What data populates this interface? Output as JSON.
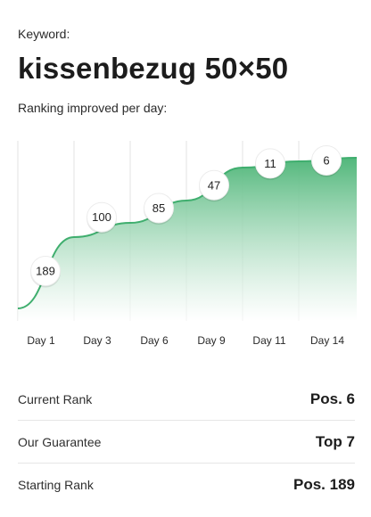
{
  "keyword": {
    "label": "Keyword:",
    "title": "kissenbezug 50×50"
  },
  "ranking": {
    "subtitle": "Ranking improved per day:"
  },
  "chart_data": {
    "type": "area",
    "categories": [
      "Day 1",
      "Day 3",
      "Day 6",
      "Day 9",
      "Day 11",
      "Day 14"
    ],
    "values": [
      189,
      100,
      85,
      47,
      11,
      6
    ],
    "y_inverted": true,
    "grid": true,
    "colors": {
      "line": "#3fae6e",
      "fill_top": "#52b77b",
      "fill_bottom": "#ffffff",
      "grid": "#e3e3e3"
    }
  },
  "stats": [
    {
      "label": "Current Rank",
      "value": "Pos. 6"
    },
    {
      "label": "Our Guarantee",
      "value": "Top 7"
    },
    {
      "label": "Starting Rank",
      "value": "Pos. 189"
    }
  ]
}
